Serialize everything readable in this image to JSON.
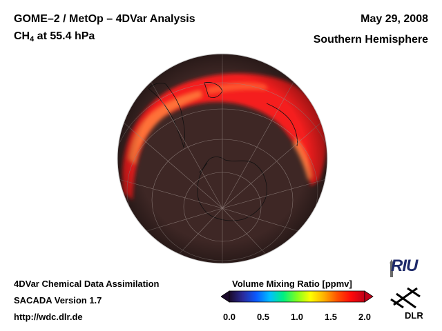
{
  "header": {
    "title_line1": "GOME–2 / MetOp – 4DVar Analysis",
    "title_species_base": "CH",
    "title_species_sub": "4",
    "title_level": " at 55.4 hPa",
    "date": "May 29, 2008",
    "hemisphere": "Southern Hemisphere"
  },
  "footer": {
    "line1": "4DVar Chemical Data Assimilation",
    "line2": "SACADA Version 1.7",
    "line3": "http://wdc.dlr.de"
  },
  "colorbar": {
    "title": "Volume Mixing Ratio [ppmv]",
    "ticks": [
      "0.0",
      "0.5",
      "1.0",
      "1.5",
      "2.0"
    ],
    "min": 0.0,
    "max": 2.0,
    "colors": [
      "#1a0a2a",
      "#2a2a9a",
      "#0a5aff",
      "#00c0ff",
      "#00f080",
      "#80ff20",
      "#ffff00",
      "#ffb000",
      "#ff5000",
      "#ff0a0a",
      "#c00018"
    ]
  },
  "logos": {
    "riu_text": "RIU",
    "dlr_text": "DLR"
  },
  "map": {
    "background_color": "#3e2725",
    "band_color_high": "#ff2828",
    "band_color_peak": "#ffa040"
  }
}
